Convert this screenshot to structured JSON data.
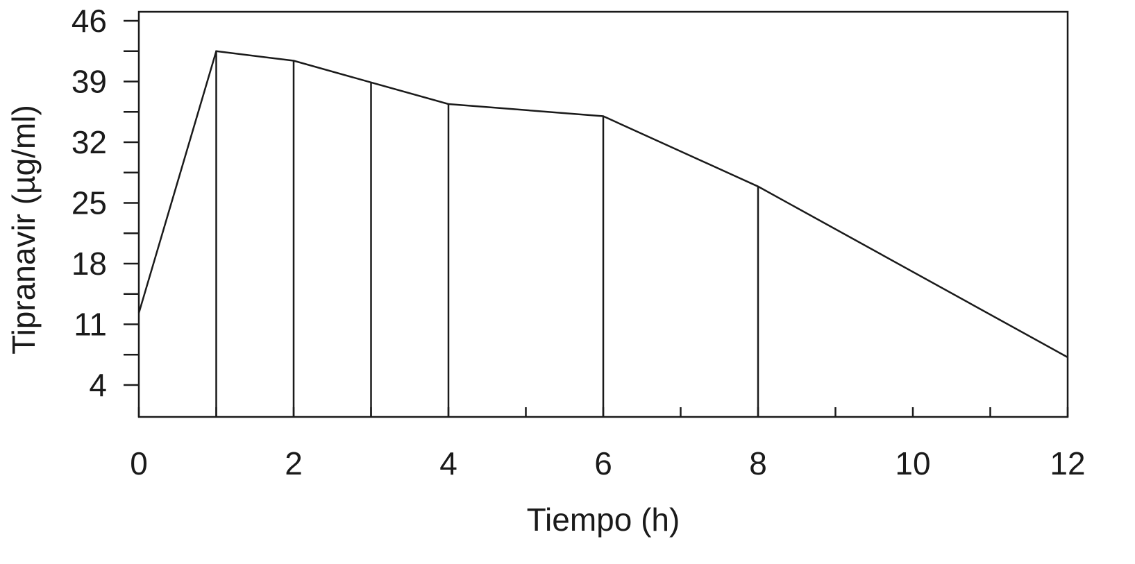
{
  "chart_data": {
    "type": "line",
    "title": "",
    "xlabel": "Tiempo (h)",
    "ylabel": "Tipranavir (µg/ml)",
    "xlim": [
      0,
      12
    ],
    "ylim": [
      0,
      46
    ],
    "x_ticks": [
      0,
      2,
      4,
      6,
      8,
      10,
      12
    ],
    "x_minor_ticks": [
      1,
      3,
      5,
      7,
      9,
      11
    ],
    "y_ticks": [
      4,
      11,
      18,
      25,
      32,
      39,
      46
    ],
    "y_minor_ticks": [
      7.5,
      14.5,
      21.5,
      28.5,
      35.5,
      42.5
    ],
    "grid": false,
    "legend": "none",
    "color": "#1a1a1a",
    "series": [
      {
        "x": [
          0,
          1,
          2,
          3,
          4,
          6,
          8,
          12
        ],
        "y": [
          12.3,
          42.5,
          41.4,
          38.9,
          36.4,
          35.0,
          26.9,
          7.2
        ]
      }
    ],
    "drop_lines_at_x": [
      1,
      2,
      3,
      4,
      6,
      8
    ]
  }
}
